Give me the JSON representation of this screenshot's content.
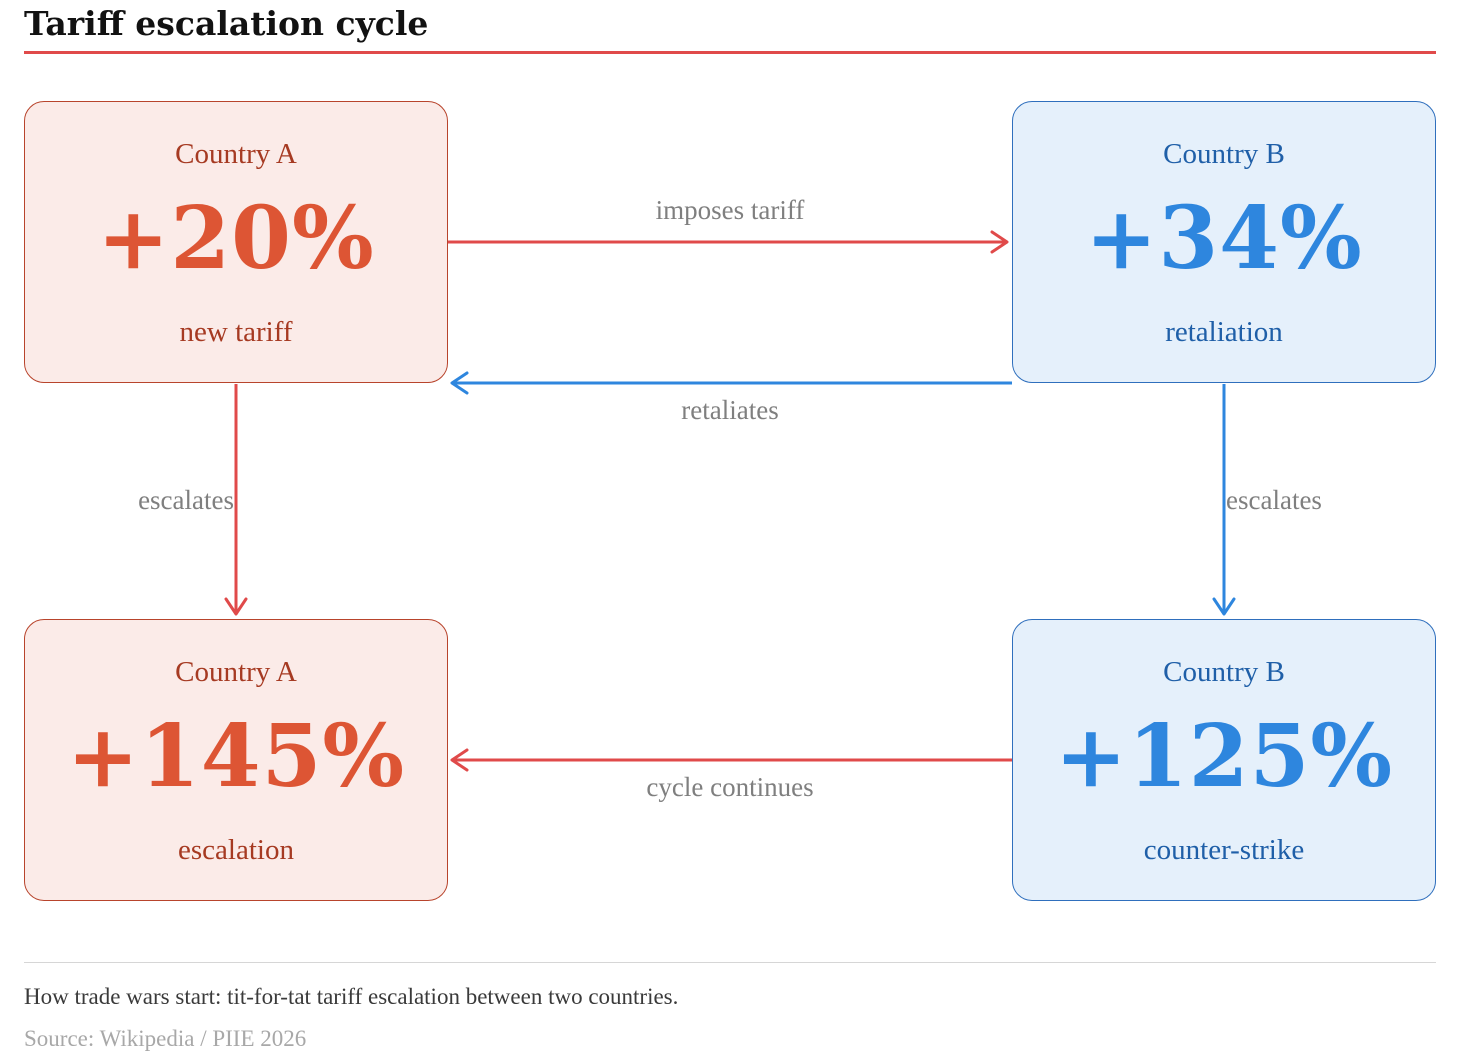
{
  "header": {
    "title": "Tariff escalation cycle"
  },
  "colors": {
    "accent_red": "#e04a4a",
    "country_a": "#dd5534",
    "country_b": "#2e86de",
    "edge_label": "#7f7f7f"
  },
  "nodes": {
    "a1": {
      "country": "Country A",
      "value": "+20%",
      "label": "new tariff"
    },
    "b1": {
      "country": "Country B",
      "value": "+34%",
      "label": "retaliation"
    },
    "a2": {
      "country": "Country A",
      "value": "+145%",
      "label": "escalation"
    },
    "b2": {
      "country": "Country B",
      "value": "+125%",
      "label": "counter-strike"
    }
  },
  "edges": {
    "a1_to_b1": "imposes tariff",
    "b1_to_a1": "retaliates",
    "a1_to_a2": "escalates",
    "b1_to_b2": "escalates",
    "b2_to_a2": "cycle continues"
  },
  "footer": {
    "caption": "How trade wars start: tit-for-tat tariff escalation between two countries.",
    "source": "Source: Wikipedia / PIIE 2026"
  }
}
